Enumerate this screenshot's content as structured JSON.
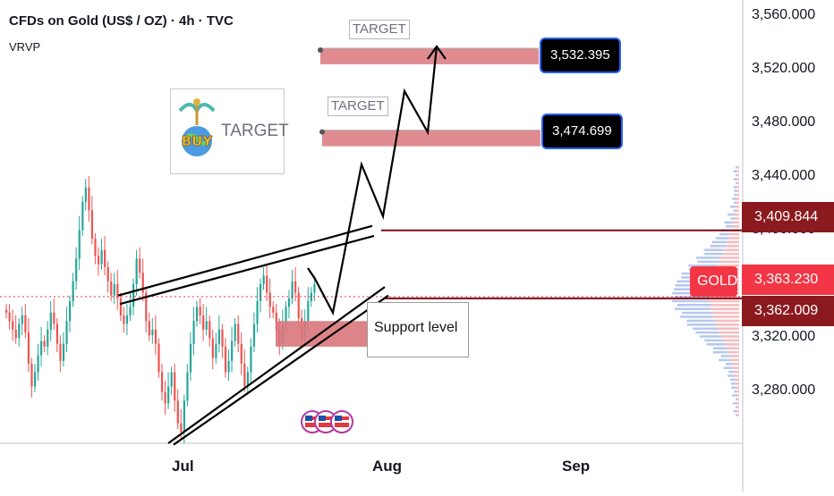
{
  "header": {
    "title": "CFDs on Gold (US$ / OZ) · 4h · TVC",
    "indicator": "VRVP"
  },
  "annotations": {
    "target_label": "TARGET",
    "target_1_value": "3,532.395",
    "target_2_value": "3,474.699",
    "support_label": "Support level",
    "buy_card_text": "TARGET",
    "buy_word": "BUY"
  },
  "price_tags": {
    "resistance": "3,409.844",
    "symbol": "GOLD",
    "last_price": "3,363.230",
    "support": "3,362.009"
  },
  "colors": {
    "up": "#26a69a",
    "down": "#ef5350",
    "zone": "#d9777c",
    "line": "#7a0d17",
    "tag_red": "#8b1a1f",
    "tag_bright": "#f23645",
    "box_border": "#2962ff"
  },
  "chart_data": {
    "type": "candlestick",
    "timeframe": "4h",
    "symbol": "TVC:GOLD",
    "x_tick_labels": [
      "Jul",
      "Aug",
      "Sep"
    ],
    "y_ticks": [
      3280,
      3320,
      3360,
      3400,
      3440,
      3480,
      3520,
      3560
    ],
    "y_tick_labels": [
      "3,280.000",
      "3,320.000",
      "3,360.000",
      "3,400.000",
      "3,440.000",
      "3,480.000",
      "3,520.000",
      "3,560.000"
    ],
    "ylim": [
      3260,
      3572
    ],
    "last_price": 3363.23,
    "target_levels": [
      3532.395,
      3474.699
    ],
    "resistance_level": 3409.844,
    "support_level": 3362.009,
    "support_zone": [
      3328,
      3346
    ],
    "closes": [
      3352,
      3346,
      3340,
      3334,
      3344,
      3350,
      3338,
      3316,
      3300,
      3310,
      3322,
      3332,
      3328,
      3340,
      3352,
      3344,
      3330,
      3318,
      3330,
      3346,
      3360,
      3374,
      3390,
      3410,
      3430,
      3440,
      3424,
      3404,
      3392,
      3386,
      3396,
      3384,
      3374,
      3364,
      3372,
      3362,
      3350,
      3344,
      3350,
      3356,
      3372,
      3390,
      3380,
      3366,
      3346,
      3336,
      3340,
      3330,
      3310,
      3296,
      3288,
      3300,
      3310,
      3290,
      3274,
      3268,
      3290,
      3310,
      3330,
      3346,
      3356,
      3350,
      3340,
      3346,
      3334,
      3320,
      3330,
      3340,
      3328,
      3310,
      3318,
      3332,
      3344,
      3330,
      3316,
      3300,
      3310,
      3328,
      3344,
      3360,
      3372,
      3378,
      3366,
      3356,
      3352,
      3340,
      3330,
      3344,
      3356,
      3362,
      3374,
      3366,
      3348,
      3334,
      3346,
      3360,
      3366,
      3372
    ]
  }
}
